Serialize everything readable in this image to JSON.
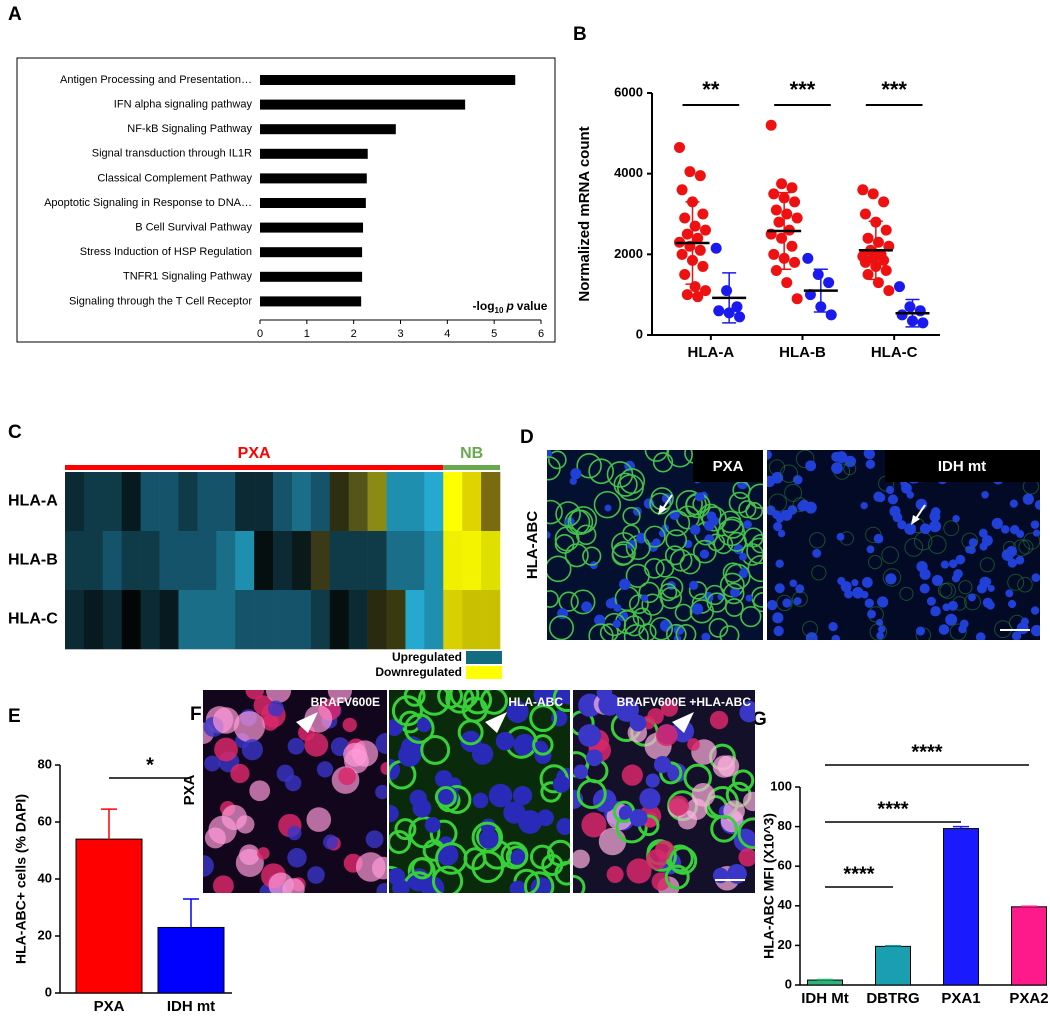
{
  "panel_labels": [
    "A",
    "B",
    "C",
    "D",
    "E",
    "F",
    "G"
  ],
  "chart_data": [
    {
      "type": "hbar",
      "categories": [
        "Antigen Processing and Presentation…",
        "IFN alpha signaling pathway",
        "NF-kB Signaling Pathway",
        "Signal transduction through IL1R",
        "Classical Complement Pathway",
        "Apoptotic Signaling in Response to DNA…",
        "B Cell Survival Pathway",
        "Stress Induction of HSP Regulation",
        "TNFR1 Signaling Pathway",
        "Signaling through the T Cell Receptor"
      ],
      "values": [
        5.45,
        4.38,
        2.9,
        2.3,
        2.28,
        2.26,
        2.2,
        2.18,
        2.18,
        2.16
      ],
      "color": "#000000",
      "xlim": [
        0,
        6
      ],
      "xticks": [
        0,
        1,
        2,
        3,
        4,
        5,
        6
      ],
      "xlabel_parts": [
        "-log",
        "10",
        "p",
        "value"
      ]
    },
    {
      "type": "dotplot",
      "categories": [
        "HLA-A",
        "HLA-B",
        "HLA-C"
      ],
      "ylabel": "Normalized mRNA count",
      "ylim": [
        0,
        6000
      ],
      "yticks": [
        0,
        2000,
        4000,
        6000
      ],
      "series": [
        {
          "color": "#ee1111",
          "values": [
            [
              4650,
              4050,
              3950,
              3600,
              3300,
              3000,
              2900,
              2700,
              2600,
              2500,
              2400,
              2300,
              2200,
              2100,
              2000,
              1850,
              1700,
              1500,
              1200,
              1100,
              1000,
              950
            ],
            [
              5200,
              3750,
              3650,
              3500,
              3400,
              3300,
              3100,
              3000,
              2900,
              2800,
              2600,
              2500,
              2400,
              2200,
              2000,
              1900,
              1800,
              1600,
              1300,
              900
            ],
            [
              3600,
              3500,
              3300,
              3000,
              2800,
              2600,
              2400,
              2300,
              2200,
              2100,
              2000,
              1950,
              1900,
              1850,
              1800,
              1700,
              1600,
              1500,
              1300,
              1100
            ]
          ],
          "mean": [
            2280,
            2580,
            2100
          ],
          "sd": [
            1020,
            950,
            720
          ]
        },
        {
          "color": "#1a1aee",
          "values": [
            [
              2150,
              1100,
              700,
              600,
              550,
              450
            ],
            [
              1900,
              1500,
              1300,
              1000,
              700,
              500
            ],
            [
              1200,
              700,
              600,
              500,
              350,
              300
            ]
          ],
          "mean": [
            920,
            1100,
            540
          ],
          "sd": [
            620,
            530,
            340
          ]
        }
      ],
      "significance": [
        "**",
        "***",
        "***"
      ]
    },
    {
      "type": "bar",
      "categories": [
        "PXA",
        "IDH mt"
      ],
      "values": [
        54,
        23
      ],
      "errors": [
        10.5,
        10
      ],
      "colors": [
        "#ff0000",
        "#0000ff"
      ],
      "ylabel": "HLA-ABC+ cells (% DAPI)",
      "ylim": [
        0,
        80
      ],
      "yticks": [
        0,
        20,
        40,
        60,
        80
      ],
      "significance": [
        {
          "label": "*",
          "between": [
            0,
            1
          ]
        }
      ]
    },
    {
      "type": "bar",
      "categories": [
        "IDH Mt",
        "DBTRG",
        "PXA1",
        "PXA2"
      ],
      "values": [
        2.5,
        19.5,
        79,
        39.5
      ],
      "errors": [
        0.3,
        0.3,
        1,
        0.3
      ],
      "colors": [
        "#2db37a",
        "#1a9fb0",
        "#1a1aff",
        "#ff1a8c"
      ],
      "ylabel": "HLA-ABC MFI (X10^3)",
      "ylim": [
        0,
        100
      ],
      "yticks": [
        0,
        20,
        40,
        60,
        80,
        100
      ],
      "significance": [
        {
          "label": "****",
          "between": [
            0,
            1
          ]
        },
        {
          "label": "****",
          "between": [
            0,
            2
          ]
        },
        {
          "label": "****",
          "between": [
            0,
            3
          ]
        }
      ]
    },
    {
      "type": "heatmap",
      "rows": [
        "HLA-A",
        "HLA-B",
        "HLA-C"
      ],
      "groups": [
        {
          "name": "PXA",
          "color": "#ff0000",
          "columns": 20
        },
        {
          "name": "NB",
          "color": "#6aa84f",
          "columns": 3
        }
      ],
      "cell_colors": [
        [
          "#0b2a33",
          "#0f3b48",
          "#0f3b48",
          "#071a1f",
          "#14536a",
          "#14536a",
          "#0f3b48",
          "#14536a",
          "#14536a",
          "#0b2a33",
          "#0b2a33",
          "#14536a",
          "#1a6e88",
          "#14536a",
          "#2e2e10",
          "#55551a",
          "#8a8a15",
          "#1f8fb0",
          "#1f8fb0",
          "#25a9d0",
          "#ffff00",
          "#e0d400",
          "#7a6a10"
        ],
        [
          "#0f3b48",
          "#0f3b48",
          "#14536a",
          "#0f3b48",
          "#0f3b48",
          "#14536a",
          "#14536a",
          "#14536a",
          "#1a6e88",
          "#1f8fb0",
          "#050f10",
          "#0b2a33",
          "#0a1a1a",
          "#3a3a18",
          "#0f3b48",
          "#0f3b48",
          "#0f3b48",
          "#1a6e88",
          "#1a6e88",
          "#1f8fb0",
          "#f0f000",
          "#f4f400",
          "#e0e000"
        ],
        [
          "#0b2a33",
          "#071a1f",
          "#0b2a33",
          "#020606",
          "#0b2a33",
          "#071a1f",
          "#1a6e88",
          "#1a6e88",
          "#1a6e88",
          "#14536a",
          "#14536a",
          "#14536a",
          "#14536a",
          "#0f3b48",
          "#050f10",
          "#0b2a33",
          "#2a2a10",
          "#3a3a10",
          "#25a9d0",
          "#1f8fb0",
          "#d8d000",
          "#c8c000",
          "#c8c000"
        ]
      ],
      "legend": [
        {
          "label": "Upregulated",
          "color": "#136b80"
        },
        {
          "label": "Downregulated",
          "color": "#ffff00"
        }
      ]
    }
  ],
  "images": {
    "D": {
      "side_label": "HLA-ABC",
      "labels": [
        "PXA",
        "IDH mt"
      ]
    },
    "F": {
      "side_label": "PXA",
      "labels": [
        "BRAFV600E",
        "HLA-ABC",
        "BRAFV600E +HLA-ABC"
      ]
    }
  }
}
